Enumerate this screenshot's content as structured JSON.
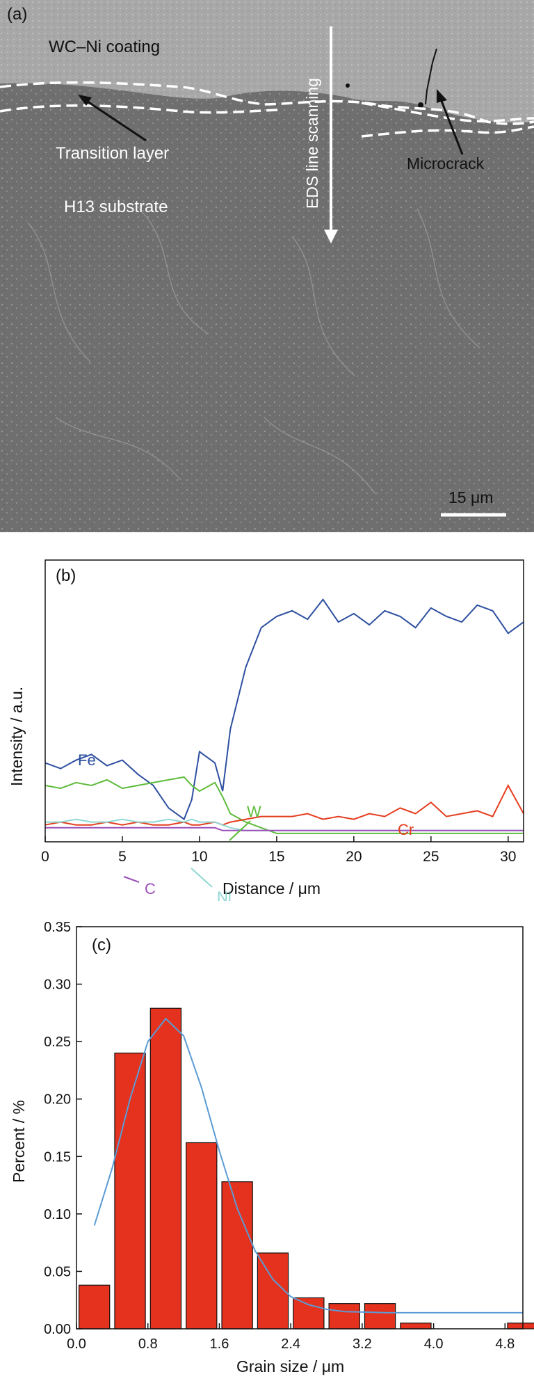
{
  "panel_a": {
    "panel_label": "(a)",
    "labels": {
      "coating": "WC–Ni coating",
      "transition": "Transition layer",
      "substrate": "H13 substrate",
      "eds": "EDS line scanning",
      "microcrack": "Microcrack"
    },
    "scale_bar": "15 μm",
    "colors": {
      "background": "#6e6e6e",
      "coating": "#a9a9a9",
      "annotation": "#ffffff"
    }
  },
  "chart_data": [
    {
      "type": "line",
      "panel_label": "(b)",
      "xlabel": "Distance / μm",
      "ylabel": "Intensity / a.u.",
      "xlim": [
        0,
        31
      ],
      "ylim": [
        0,
        1
      ],
      "x_ticks": [
        0,
        5,
        10,
        15,
        20,
        25,
        30
      ],
      "y_ticks_shown": false,
      "x": [
        0,
        1,
        2,
        3,
        4,
        5,
        6,
        7,
        8,
        9,
        9.5,
        10,
        11,
        11.5,
        12,
        13,
        14,
        15,
        16,
        17,
        18,
        19,
        20,
        21,
        22,
        23,
        24,
        25,
        26,
        27,
        28,
        29,
        30,
        31
      ],
      "series": [
        {
          "name": "Fe",
          "color": "#2d4fa0",
          "values": [
            0.28,
            0.26,
            0.29,
            0.31,
            0.27,
            0.29,
            0.24,
            0.2,
            0.12,
            0.08,
            0.15,
            0.32,
            0.28,
            0.18,
            0.4,
            0.62,
            0.76,
            0.8,
            0.82,
            0.79,
            0.86,
            0.78,
            0.81,
            0.77,
            0.82,
            0.8,
            0.76,
            0.83,
            0.8,
            0.78,
            0.84,
            0.82,
            0.74,
            0.78
          ]
        },
        {
          "name": "W",
          "color": "#5dbb3a",
          "values": [
            0.2,
            0.19,
            0.21,
            0.2,
            0.22,
            0.19,
            0.2,
            0.21,
            0.22,
            0.23,
            0.2,
            0.18,
            0.21,
            0.16,
            0.1,
            0.07,
            0.05,
            0.03,
            0.03,
            0.03,
            0.03,
            0.03,
            0.03,
            0.03,
            0.03,
            0.03,
            0.03,
            0.03,
            0.03,
            0.03,
            0.03,
            0.03,
            0.03,
            0.03
          ]
        },
        {
          "name": "Cr",
          "color": "#e43d1e",
          "values": [
            0.06,
            0.07,
            0.06,
            0.06,
            0.07,
            0.06,
            0.07,
            0.06,
            0.06,
            0.07,
            0.06,
            0.06,
            0.07,
            0.06,
            0.07,
            0.08,
            0.09,
            0.09,
            0.09,
            0.1,
            0.08,
            0.09,
            0.08,
            0.1,
            0.09,
            0.12,
            0.1,
            0.14,
            0.09,
            0.1,
            0.11,
            0.09,
            0.2,
            0.1
          ]
        },
        {
          "name": "Ni",
          "color": "#8fd7d3",
          "values": [
            0.07,
            0.07,
            0.08,
            0.07,
            0.07,
            0.08,
            0.07,
            0.07,
            0.08,
            0.07,
            0.08,
            0.07,
            0.07,
            0.06,
            0.05,
            0.04,
            0.04,
            0.04,
            0.04,
            0.04,
            0.04,
            0.04,
            0.04,
            0.04,
            0.04,
            0.04,
            0.04,
            0.04,
            0.04,
            0.04,
            0.04,
            0.04,
            0.04,
            0.04
          ]
        },
        {
          "name": "C",
          "color": "#9a4fb8",
          "values": [
            0.05,
            0.05,
            0.05,
            0.05,
            0.05,
            0.05,
            0.05,
            0.05,
            0.05,
            0.05,
            0.05,
            0.05,
            0.05,
            0.04,
            0.04,
            0.04,
            0.04,
            0.04,
            0.04,
            0.04,
            0.04,
            0.04,
            0.04,
            0.04,
            0.04,
            0.04,
            0.04,
            0.04,
            0.04,
            0.04,
            0.04,
            0.04,
            0.04,
            0.04
          ]
        }
      ]
    },
    {
      "type": "bar",
      "panel_label": "(c)",
      "xlabel": "Grain size / μm",
      "ylabel": "Percent / %",
      "xlim": [
        0,
        5
      ],
      "ylim": [
        0,
        0.35
      ],
      "x_ticks": [
        "0.0",
        "0.8",
        "1.6",
        "2.4",
        "3.2",
        "4.0",
        "4.8"
      ],
      "y_ticks": [
        "0.00",
        "0.05",
        "0.10",
        "0.15",
        "0.20",
        "0.25",
        "0.30",
        "0.35"
      ],
      "bar_centers": [
        0.2,
        0.6,
        1.0,
        1.4,
        1.8,
        2.2,
        2.6,
        3.0,
        3.4,
        3.8,
        4.2,
        4.6,
        5.0
      ],
      "values": [
        0.038,
        0.24,
        0.279,
        0.162,
        0.128,
        0.066,
        0.027,
        0.022,
        0.022,
        0.005,
        0.0,
        0.0,
        0.005
      ],
      "bar_color": "#e4321e",
      "fit_color": "#5b9bd5",
      "fit_x": [
        0.2,
        0.4,
        0.6,
        0.8,
        1.0,
        1.2,
        1.4,
        1.6,
        1.8,
        2.0,
        2.2,
        2.4,
        2.6,
        2.8,
        3.0,
        3.5,
        4.0,
        4.5,
        5.0
      ],
      "fit_y": [
        0.09,
        0.14,
        0.2,
        0.25,
        0.27,
        0.255,
        0.21,
        0.155,
        0.105,
        0.068,
        0.043,
        0.028,
        0.021,
        0.017,
        0.015,
        0.014,
        0.014,
        0.014,
        0.014
      ]
    }
  ]
}
